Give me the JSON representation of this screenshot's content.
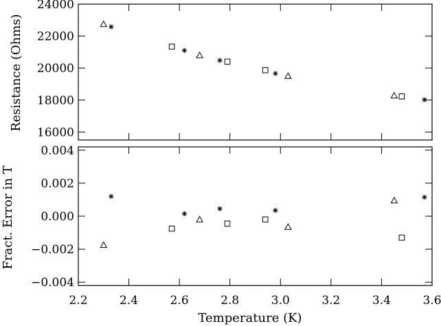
{
  "chart_data": [
    {
      "type": "scatter",
      "ylabel": "Resistance (Ohms)",
      "xlim": [
        2.2,
        3.6
      ],
      "ylim": [
        15500,
        24000
      ],
      "yticks": [
        16000,
        18000,
        20000,
        22000,
        24000
      ],
      "ytick_labels": [
        "16000",
        "18000",
        "20000",
        "22000",
        "24000"
      ],
      "series": [
        {
          "marker": "triangle",
          "x": [
            2.3,
            2.68,
            3.03,
            3.45
          ],
          "y": [
            22750,
            20800,
            19500,
            18280
          ]
        },
        {
          "marker": "asterisk",
          "x": [
            2.33,
            2.62,
            2.76,
            2.98,
            3.57
          ],
          "y": [
            22580,
            21100,
            20480,
            19660,
            18020
          ]
        },
        {
          "marker": "square",
          "x": [
            2.57,
            2.79,
            2.94,
            3.48
          ],
          "y": [
            21340,
            20400,
            19870,
            18230
          ]
        }
      ]
    },
    {
      "type": "scatter",
      "ylabel": "Fract. Error in T",
      "xlabel": "Temperature (K)",
      "xlim": [
        2.2,
        3.6
      ],
      "ylim": [
        -0.0042,
        0.0042
      ],
      "yticks": [
        -0.004,
        -0.002,
        0.0,
        0.002,
        0.004
      ],
      "ytick_labels": [
        "−0.004",
        "−0.002",
        "0.000",
        "0.002",
        "0.004"
      ],
      "xticks": [
        2.2,
        2.4,
        2.6,
        2.8,
        3.0,
        3.2,
        3.4,
        3.6
      ],
      "xtick_labels": [
        "2.2",
        "2.4",
        "2.6",
        "2.8",
        "3.0",
        "3.2",
        "3.4",
        "3.6"
      ],
      "series": [
        {
          "marker": "triangle",
          "x": [
            2.3,
            2.68,
            3.03,
            3.45
          ],
          "y": [
            -0.00175,
            -0.0002,
            -0.00065,
            0.00095
          ]
        },
        {
          "marker": "asterisk",
          "x": [
            2.33,
            2.62,
            2.76,
            2.98,
            3.57
          ],
          "y": [
            0.0012,
            0.00015,
            0.00045,
            0.00035,
            0.00115
          ]
        },
        {
          "marker": "square",
          "x": [
            2.57,
            2.79,
            2.94,
            3.48
          ],
          "y": [
            -0.00075,
            -0.00045,
            -0.0002,
            -0.0013
          ]
        }
      ]
    }
  ]
}
